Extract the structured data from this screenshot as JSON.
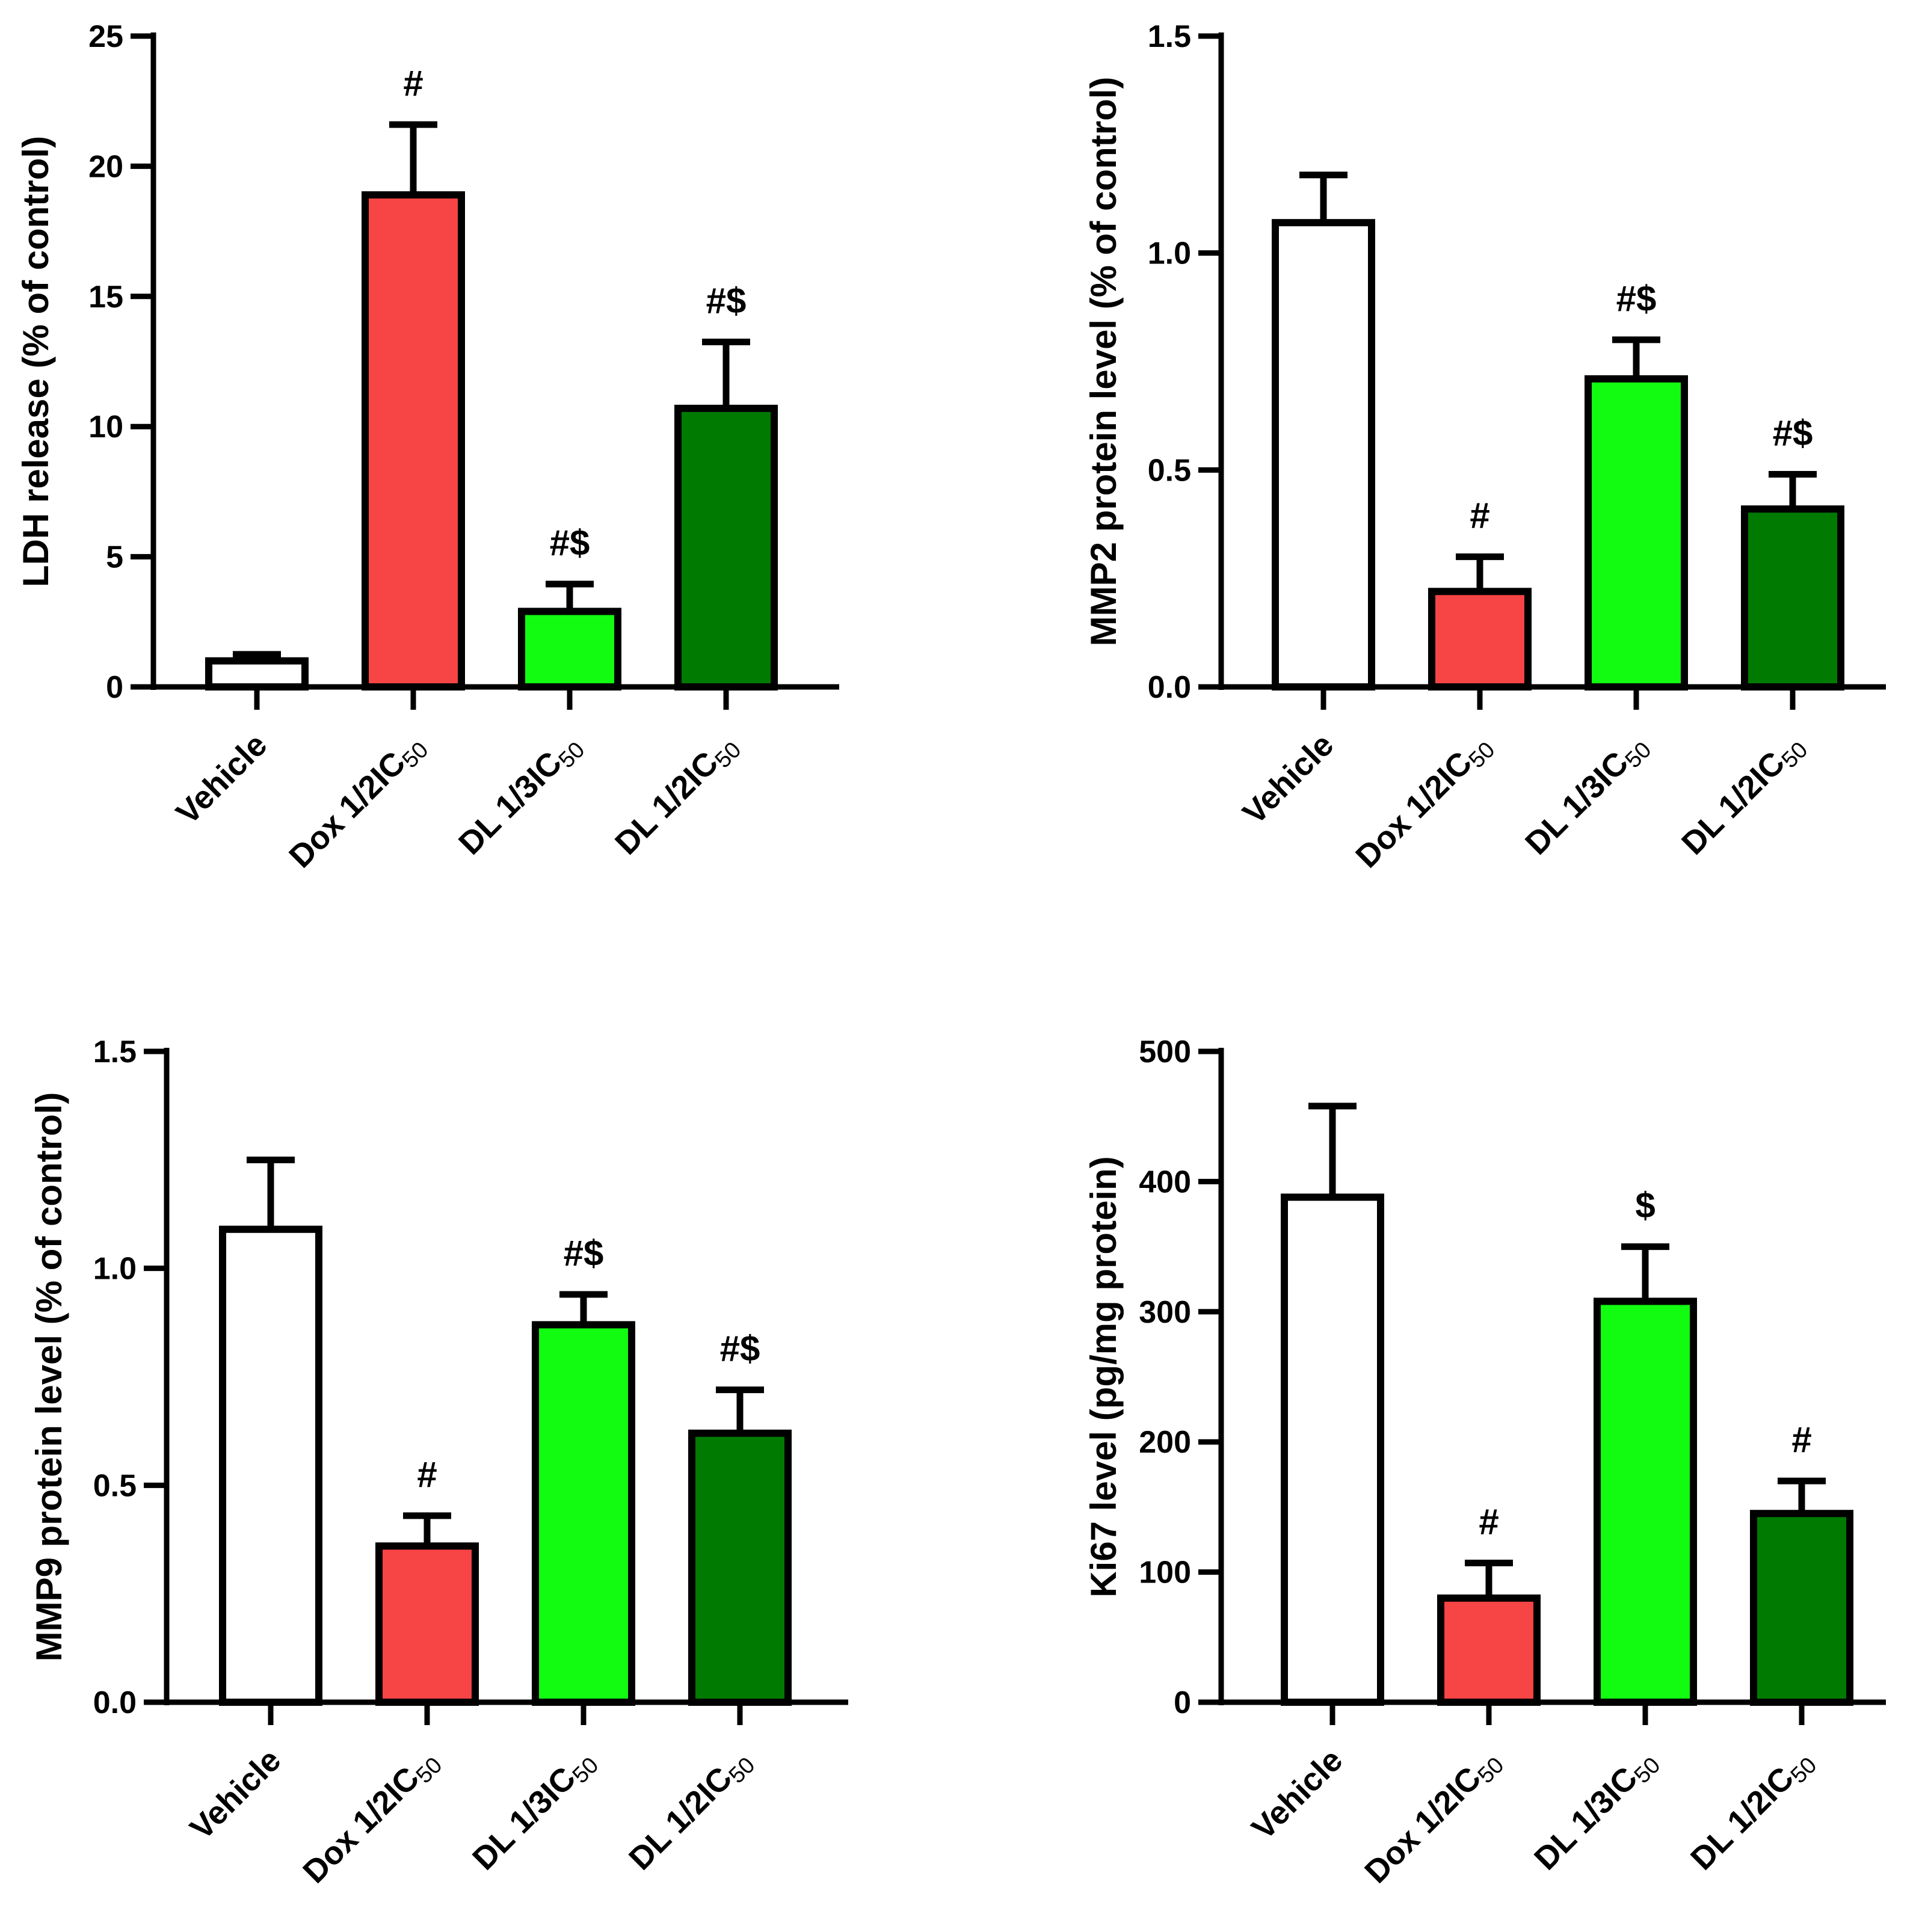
{
  "colors": {
    "Vehicle": "#ffffff",
    "Dox 1/2IC50": "#f74444",
    "DL 1/3IC50": "#11fc11",
    "DL 1/2IC50": "#017a01",
    "stroke": "#000000"
  },
  "chart_data": [
    {
      "type": "bar",
      "title": "",
      "xlabel": "",
      "ylabel": "LDH release (% of control)",
      "ylim": [
        0,
        25
      ],
      "yticks": [
        0,
        5,
        10,
        15,
        20,
        25
      ],
      "ytick_labels": [
        "0",
        "5",
        "10",
        "15",
        "20",
        "25"
      ],
      "categories": [
        {
          "main": "Vehicle",
          "sub": ""
        },
        {
          "main": "Dox 1/2IC",
          "sub": "50"
        },
        {
          "main": "DL 1/3IC",
          "sub": "50"
        },
        {
          "main": "DL 1/2IC",
          "sub": "50"
        }
      ],
      "values": [
        1.0,
        18.9,
        2.9,
        10.7
      ],
      "errors": [
        0.25,
        2.7,
        1.05,
        2.55
      ],
      "annotations": [
        "",
        "#",
        "#$",
        "#$"
      ]
    },
    {
      "type": "bar",
      "title": "",
      "xlabel": "",
      "ylabel": "MMP2 protein level (% of control)",
      "ylim": [
        0,
        1.5
      ],
      "yticks": [
        0,
        0.5,
        1.0,
        1.5
      ],
      "ytick_labels": [
        "0.0",
        "0.5",
        "1.0",
        "1.5"
      ],
      "categories": [
        {
          "main": "Vehicle",
          "sub": ""
        },
        {
          "main": "Dox 1/2IC",
          "sub": "50"
        },
        {
          "main": "DL 1/3IC",
          "sub": "50"
        },
        {
          "main": "DL 1/2IC",
          "sub": "50"
        }
      ],
      "values": [
        1.07,
        0.22,
        0.71,
        0.41
      ],
      "errors": [
        0.11,
        0.08,
        0.09,
        0.08
      ],
      "annotations": [
        "",
        "#",
        "#$",
        "#$"
      ]
    },
    {
      "type": "bar",
      "title": "",
      "xlabel": "",
      "ylabel": "MMP9 protein level (% of control)",
      "ylim": [
        0,
        1.5
      ],
      "yticks": [
        0,
        0.5,
        1.0,
        1.5
      ],
      "ytick_labels": [
        "0.0",
        "0.5",
        "1.0",
        "1.5"
      ],
      "categories": [
        {
          "main": "Vehicle",
          "sub": ""
        },
        {
          "main": "Dox 1/2IC",
          "sub": "50"
        },
        {
          "main": "DL 1/3IC",
          "sub": "50"
        },
        {
          "main": "DL 1/2IC",
          "sub": "50"
        }
      ],
      "values": [
        1.09,
        0.36,
        0.87,
        0.62
      ],
      "errors": [
        0.16,
        0.07,
        0.07,
        0.1
      ],
      "annotations": [
        "",
        "#",
        "#$",
        "#$"
      ]
    },
    {
      "type": "bar",
      "title": "",
      "xlabel": "",
      "ylabel": "Ki67 level (pg/mg protein)",
      "ylim": [
        0,
        500
      ],
      "yticks": [
        0,
        100,
        200,
        300,
        400,
        500
      ],
      "ytick_labels": [
        "0",
        "100",
        "200",
        "300",
        "400",
        "500"
      ],
      "categories": [
        {
          "main": "Vehicle",
          "sub": ""
        },
        {
          "main": "Dox 1/2IC",
          "sub": "50"
        },
        {
          "main": "DL 1/3IC",
          "sub": "50"
        },
        {
          "main": "DL 1/2IC",
          "sub": "50"
        }
      ],
      "values": [
        388,
        80,
        308,
        145
      ],
      "errors": [
        70,
        27,
        42,
        25
      ],
      "annotations": [
        "",
        "#",
        "$",
        "#"
      ]
    }
  ]
}
